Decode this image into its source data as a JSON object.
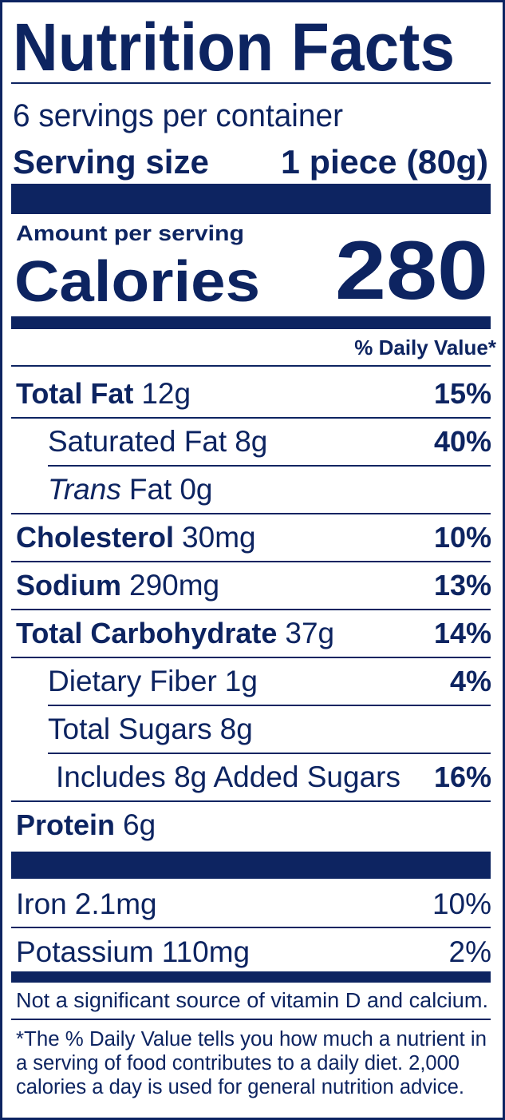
{
  "header": {
    "title": "Nutrition Facts",
    "servings": "6 servings per container",
    "serving_size_label": "Serving size",
    "serving_size": "1 piece (80g)"
  },
  "calories": {
    "amount_per_serving": "Amount per serving",
    "label": "Calories",
    "value": "280"
  },
  "daily_value_header": "% Daily Value*",
  "nutrients": [
    {
      "name": "Total Fat",
      "amount": "12g",
      "dv": "15%"
    },
    {
      "name": "Saturated Fat",
      "amount": "8g",
      "dv": "40%"
    },
    {
      "name_italic": "Trans",
      "name": "Fat",
      "amount": "0g"
    },
    {
      "name": "Cholesterol",
      "amount": "30mg",
      "dv": "10%"
    },
    {
      "name": "Sodium",
      "amount": "290mg",
      "dv": "13%"
    },
    {
      "name": "Total Carbohydrate",
      "amount": "37g",
      "dv": "14%"
    },
    {
      "name": "Dietary Fiber",
      "amount": "1g",
      "dv": "4%"
    },
    {
      "name": "Total Sugars",
      "amount": "8g"
    },
    {
      "name": "Includes 8g Added Sugars",
      "dv": "16%"
    },
    {
      "name": "Protein",
      "amount": "6g"
    }
  ],
  "minerals": [
    {
      "name": "Iron",
      "amount": "2.1mg",
      "dv": "10%"
    },
    {
      "name": "Potassium",
      "amount": "110mg",
      "dv": "2%"
    }
  ],
  "note": "Not a significant source of vitamin D and calcium.",
  "footnote": [
    "*The % Daily Value tells you how much a nutrient in",
    "a serving of food contributes to a daily diet. 2,000",
    "calories a day is used for general nutrition advice."
  ]
}
